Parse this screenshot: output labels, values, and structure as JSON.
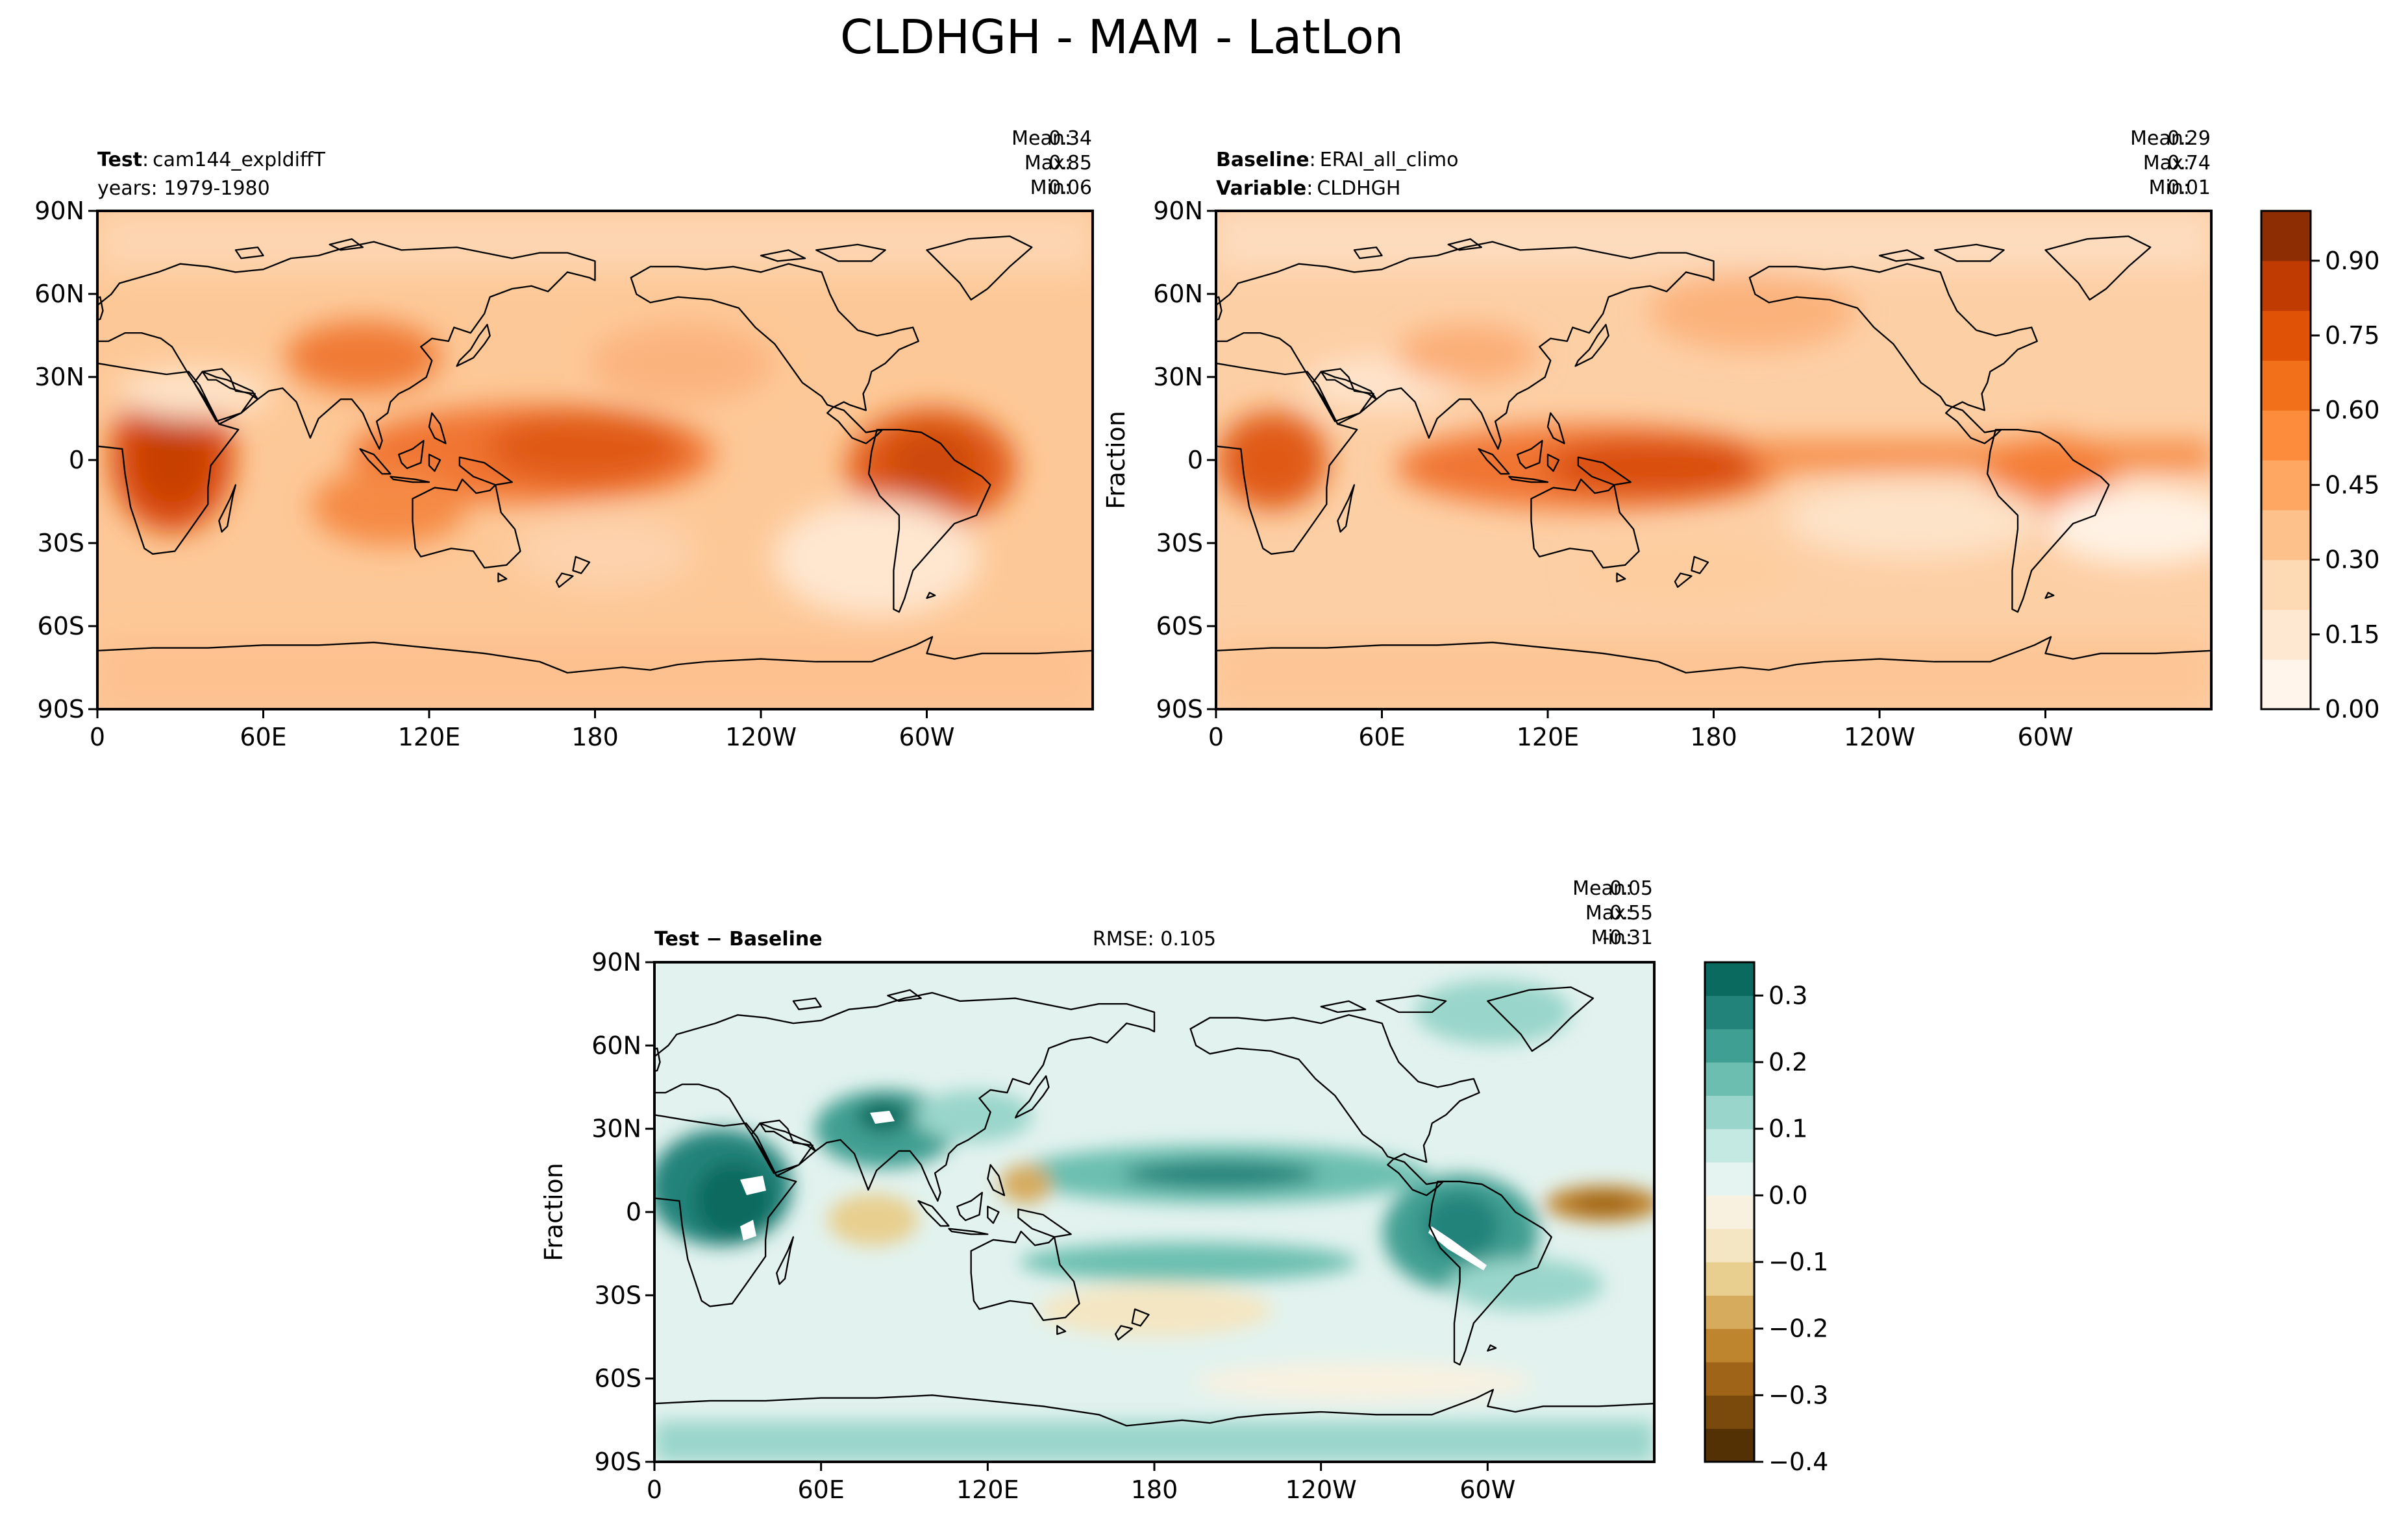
{
  "figure": {
    "title": "CLDHGH - MAM - LatLon"
  },
  "colors": {
    "oranges": [
      "#fff5eb",
      "#fee8d2",
      "#fdd9b4",
      "#fdc28c",
      "#fda762",
      "#fd8d3c",
      "#f3701b",
      "#e05206",
      "#bf3b02",
      "#8c2d04"
    ],
    "brbg_neg": [
      "#543005",
      "#7a4a0c",
      "#9f6418",
      "#bf842e",
      "#d6ab5e",
      "#e8cf8f",
      "#f4e6c2",
      "#f8f1e0"
    ],
    "brbg_pos": [
      "#e6f4f1",
      "#c4e8e2",
      "#99d5ca",
      "#6cbfb0",
      "#3f9f92",
      "#21837a",
      "#0b6a5f",
      "#01453c"
    ]
  },
  "chart_data": [
    {
      "type": "heatmap",
      "panel": "test",
      "left_label": "Test",
      "left_value": "cam144_expldiffT",
      "left_line2": "years: 1979-1980",
      "stats": {
        "mean_label": "Mean:",
        "mean": "0.34",
        "max_label": "Max:",
        "max": "0.85",
        "min_label": "Min:",
        "min": "0.06"
      },
      "x_ticks": [
        "0",
        "60E",
        "120E",
        "180",
        "120W",
        "60W"
      ],
      "y_ticks": [
        "90N",
        "60N",
        "30N",
        "0",
        "30S",
        "60S",
        "90S"
      ],
      "ylabel": "",
      "value_range": [
        0.06,
        0.85
      ]
    },
    {
      "type": "heatmap",
      "panel": "baseline",
      "left_label": "Baseline",
      "left_value": "ERAI_all_climo",
      "left_label2": "Variable",
      "left_value2": "CLDHGH",
      "stats": {
        "mean_label": "Mean:",
        "mean": "0.29",
        "max_label": "Max:",
        "max": "0.74",
        "min_label": "Min:",
        "min": "0.01"
      },
      "x_ticks": [
        "0",
        "60E",
        "120E",
        "180",
        "120W",
        "60W"
      ],
      "y_ticks": [
        "90N",
        "60N",
        "30N",
        "0",
        "30S",
        "60S",
        "90S"
      ],
      "ylabel": "Fraction",
      "colorbar": {
        "ticks": [
          "0.90",
          "0.75",
          "0.60",
          "0.45",
          "0.30",
          "0.15",
          "0.00"
        ],
        "range": [
          0,
          1
        ]
      },
      "value_range": [
        0.01,
        0.74
      ]
    },
    {
      "type": "heatmap",
      "panel": "difference",
      "left_label": "Test − Baseline",
      "center_label": "RMSE: 0.105",
      "stats": {
        "mean_label": "Mean:",
        "mean": "0.05",
        "max_label": "Max:",
        "max": "0.55",
        "min_label": "Min:",
        "min": "-0.31"
      },
      "x_ticks": [
        "0",
        "60E",
        "120E",
        "180",
        "120W",
        "60W"
      ],
      "y_ticks": [
        "90N",
        "60N",
        "30N",
        "0",
        "30S",
        "60S",
        "90S"
      ],
      "ylabel": "Fraction",
      "colorbar": {
        "ticks": [
          "0.3",
          "0.2",
          "0.1",
          "0.0",
          "−0.1",
          "−0.2",
          "−0.3",
          "−0.4"
        ],
        "range": [
          -0.4,
          0.35
        ]
      },
      "value_range": [
        -0.31,
        0.55
      ]
    }
  ]
}
